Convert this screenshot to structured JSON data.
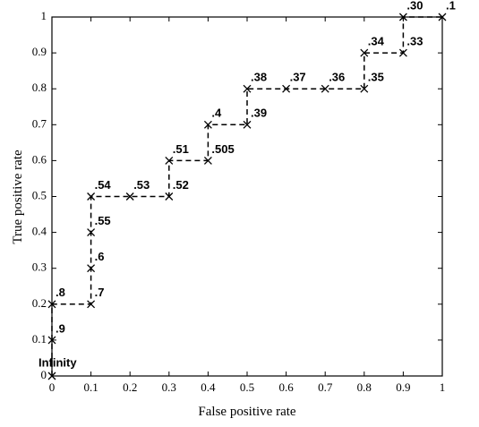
{
  "chart_data": {
    "type": "line",
    "x_label": "False positive rate",
    "y_label": "True positive rate",
    "x": [
      0,
      0,
      0,
      0.1,
      0.1,
      0.1,
      0.1,
      0.2,
      0.3,
      0.3,
      0.4,
      0.4,
      0.5,
      0.5,
      0.6,
      0.7,
      0.8,
      0.8,
      0.9,
      0.9,
      1
    ],
    "series": [
      {
        "color": "#000000",
        "values": [
          0,
          0.1,
          0.2,
          0.2,
          0.3,
          0.4,
          0.5,
          0.5,
          0.5,
          0.6,
          0.6,
          0.7,
          0.7,
          0.8,
          0.8,
          0.8,
          0.8,
          0.9,
          0.9,
          1,
          1
        ],
        "point_labels": [
          "Infinity",
          ".9",
          ".8",
          ".7",
          ".6",
          ".55",
          ".54",
          ".53",
          ".52",
          ".51",
          ".505",
          ".4",
          ".39",
          ".38",
          ".37",
          ".36",
          ".35",
          ".34",
          ".33",
          ".30",
          ".1"
        ]
      }
    ],
    "xlim": [
      0,
      1
    ],
    "ylim": [
      0,
      1
    ],
    "xticks": [
      0,
      0.1,
      0.2,
      0.3,
      0.4,
      0.5,
      0.6,
      0.7,
      0.8,
      0.9,
      1
    ],
    "yticks": [
      0,
      0.1,
      0.2,
      0.3,
      0.4,
      0.5,
      0.6,
      0.7,
      0.8,
      0.9,
      1
    ],
    "line_style": "dashed",
    "marker": "x"
  }
}
